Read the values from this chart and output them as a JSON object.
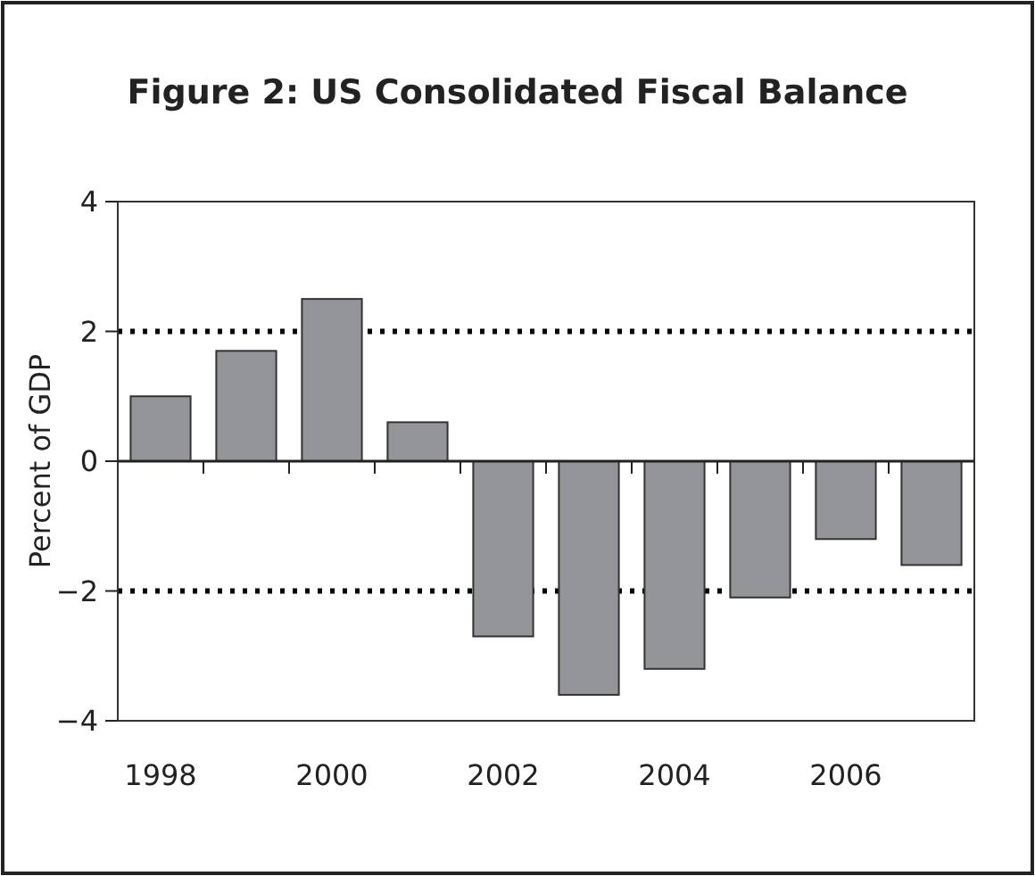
{
  "chart_data": {
    "type": "bar",
    "title": "Figure 2: US Consolidated Fiscal Balance",
    "ylabel": "Percent of GDP",
    "categories": [
      "1998",
      null,
      "2000",
      null,
      "2002",
      null,
      "2004",
      null,
      "2006",
      null
    ],
    "values": [
      1.0,
      1.7,
      2.5,
      0.6,
      -2.7,
      -3.6,
      -3.2,
      -2.1,
      -1.2,
      -1.6
    ],
    "color": "#939598",
    "ylim": [
      -4,
      4
    ],
    "yticks": [
      -4,
      -2,
      0,
      2,
      4
    ],
    "ref_lines": [
      {
        "axis": "y",
        "value": 2,
        "line_style": "dotted",
        "color": "#000000"
      },
      {
        "axis": "y",
        "value": -2,
        "line_style": "dotted",
        "color": "#000000"
      }
    ]
  }
}
